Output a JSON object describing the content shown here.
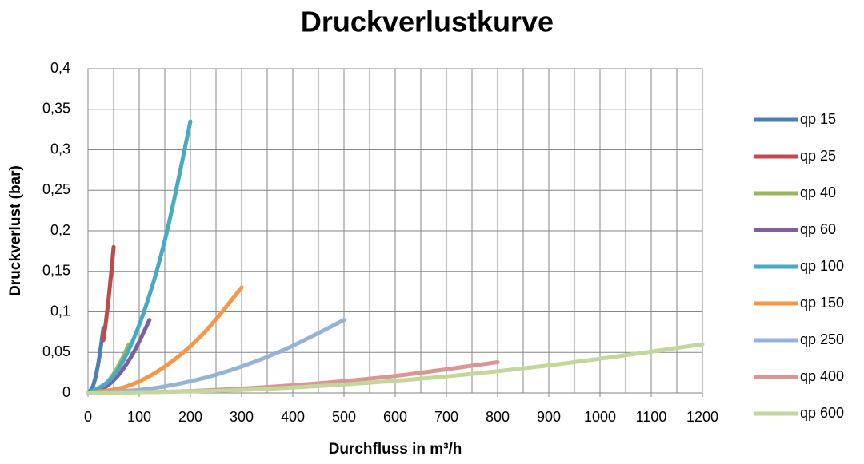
{
  "chart_data": {
    "type": "line",
    "title": "Druckverlustkurve",
    "x_label": "Durchfluss in m³/h",
    "y_label": "Druckverlust (bar)",
    "xlim": [
      0,
      1200
    ],
    "ylim": [
      0,
      0.4
    ],
    "xticks": [
      0,
      100,
      200,
      300,
      400,
      500,
      600,
      700,
      800,
      900,
      1000,
      1100,
      1200
    ],
    "xminor": [
      50,
      150,
      250,
      350,
      450,
      550,
      650,
      750,
      850,
      950,
      1050,
      1150
    ],
    "yticks": [
      0,
      {
        "value": 0.05,
        "label": "0,05"
      },
      {
        "value": 0.1,
        "label": "0,1"
      },
      {
        "value": 0.15,
        "label": "0,15"
      },
      {
        "value": 0.2,
        "label": "0,2"
      },
      {
        "value": 0.25,
        "label": "0,25"
      },
      {
        "value": 0.3,
        "label": "0,3"
      },
      {
        "value": 0.35,
        "label": "0,35"
      },
      {
        "value": 0.4,
        "label": "0,4"
      }
    ],
    "grid": true,
    "legend": "right",
    "series": [
      {
        "name": "qp 15",
        "color": "#4a7ebb",
        "x": [
          0,
          10,
          20,
          30
        ],
        "values": [
          0,
          0.009,
          0.036,
          0.08
        ]
      },
      {
        "name": "qp 25",
        "color": "#be4b48",
        "x": [
          30,
          35,
          40,
          45,
          50
        ],
        "values": [
          0.065,
          0.088,
          0.115,
          0.146,
          0.18
        ]
      },
      {
        "name": "qp 40",
        "color": "#98b954",
        "x": [
          0,
          20,
          40,
          60,
          80
        ],
        "values": [
          0,
          0.00375,
          0.015,
          0.034,
          0.06
        ]
      },
      {
        "name": "qp 60",
        "color": "#7d60a0",
        "x": [
          0,
          30,
          60,
          90,
          120
        ],
        "values": [
          0,
          0.0056,
          0.0225,
          0.051,
          0.09
        ]
      },
      {
        "name": "qp 100",
        "color": "#46aac5",
        "x": [
          0,
          50,
          100,
          150,
          200
        ],
        "values": [
          0,
          0.021,
          0.084,
          0.188,
          0.335
        ]
      },
      {
        "name": "qp 150",
        "color": "#f79646",
        "x": [
          0,
          75,
          150,
          225,
          300
        ],
        "values": [
          0,
          0.008,
          0.0325,
          0.073,
          0.13
        ]
      },
      {
        "name": "qp 250",
        "color": "#95b3d7",
        "x": [
          0,
          125,
          250,
          375,
          500
        ],
        "values": [
          0,
          0.0056,
          0.0225,
          0.051,
          0.09
        ]
      },
      {
        "name": "qp 400",
        "color": "#d99694",
        "x": [
          0,
          200,
          400,
          600,
          800
        ],
        "values": [
          0,
          0.0024,
          0.0095,
          0.021,
          0.038
        ]
      },
      {
        "name": "qp 600",
        "color": "#c3d69b",
        "x": [
          0,
          300,
          600,
          900,
          1200
        ],
        "values": [
          0,
          0.00375,
          0.015,
          0.034,
          0.06
        ]
      }
    ]
  }
}
